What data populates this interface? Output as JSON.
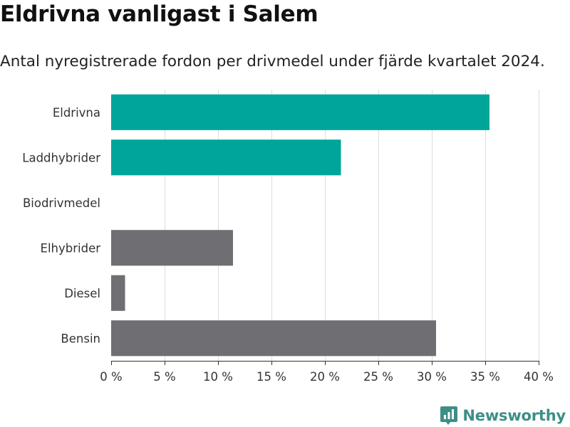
{
  "header": {
    "title": "Eldrivna vanligast i Salem",
    "subtitle": "Antal nyregistrerade fordon per drivmedel under fjärde kvartalet 2024."
  },
  "chart_data": {
    "type": "bar",
    "orientation": "horizontal",
    "categories": [
      "Eldrivna",
      "Laddhybrider",
      "Biodrivmedel",
      "Elhybrider",
      "Diesel",
      "Bensin"
    ],
    "values": [
      35.4,
      21.5,
      0,
      11.4,
      1.3,
      30.4
    ],
    "bar_colors": [
      "#00a59a",
      "#00a59a",
      "#00a59a",
      "#6f6e73",
      "#6f6e73",
      "#6f6e73"
    ],
    "xlim": [
      0,
      40
    ],
    "xticks": [
      0,
      5,
      10,
      15,
      20,
      25,
      30,
      35,
      40
    ],
    "xtick_labels": [
      "0 %",
      "5 %",
      "10 %",
      "15 %",
      "20 %",
      "25 %",
      "30 %",
      "35 %",
      "40 %"
    ],
    "grid": true
  },
  "brand": {
    "name": "Newsworthy",
    "icon": "newsworthy-logo-icon",
    "color": "#3d8f86"
  }
}
